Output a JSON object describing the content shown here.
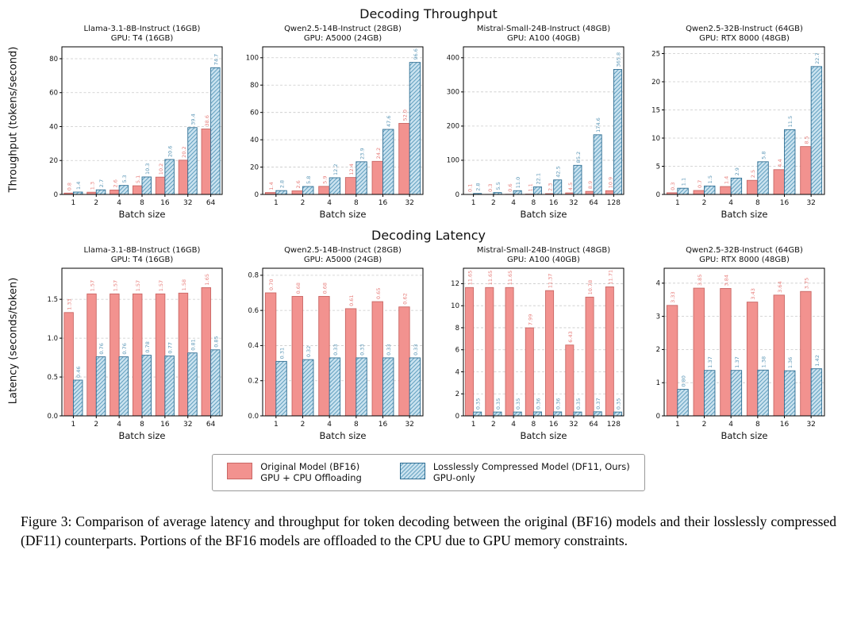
{
  "page": {
    "row1_title": "Decoding Throughput",
    "row2_title": "Decoding Latency",
    "row1_ylabel": "Throughput (tokens/second)",
    "row2_ylabel": "Latency (seconds/token)",
    "xlabel": "Batch size"
  },
  "legend": {
    "bf16_line1": "Original Model (BF16)",
    "bf16_line2": "GPU + CPU Offloading",
    "df11_line1": "Losslessly Compressed Model (DF11, Ours)",
    "df11_line2": "GPU-only"
  },
  "caption": "Figure 3: Comparison of average latency and throughput for token decoding between the original (BF16) models and their losslessly compressed (DF11) counterparts. Portions of the BF16 models are offloaded to the CPU due to GPU memory constraints.",
  "colors": {
    "bf16_fill": "#F2928F",
    "bf16_edge": "#C96765",
    "bf16_label": "#E8827F",
    "df11_fill": "#CBE3F0",
    "df11_hatch": "#66A3C2",
    "df11_edge": "#2F6E93",
    "df11_label": "#5F99B8"
  },
  "chart_data": [
    {
      "type": "bar",
      "name": "throughput-llama-3-1-8b-t4",
      "title1": "Llama-3.1-8B-Instruct (16GB)",
      "title2": "GPU: T4 (16GB)",
      "categories": [
        "1",
        "2",
        "4",
        "8",
        "16",
        "32",
        "64"
      ],
      "ylim": [
        0,
        87
      ],
      "ytick_vals": [
        0,
        20,
        40,
        60,
        80
      ],
      "ytick_labels": [
        "0",
        "20",
        "40",
        "60",
        "80"
      ],
      "series": [
        {
          "name": "Original Model (BF16) GPU + CPU Offloading",
          "values": [
            0.8,
            1.3,
            2.6,
            5.1,
            10.2,
            20.2,
            38.6
          ],
          "labels": [
            "0.8",
            "1.3",
            "2.6",
            "5.1",
            "10.2",
            "20.2",
            "38.6"
          ]
        },
        {
          "name": "Losslessly Compressed Model (DF11, Ours) GPU-only",
          "values": [
            1.4,
            2.7,
            5.3,
            10.3,
            20.6,
            39.4,
            74.7
          ],
          "labels": [
            "1.4",
            "2.7",
            "5.3",
            "10.3",
            "20.6",
            "39.4",
            "74.7"
          ]
        }
      ]
    },
    {
      "type": "bar",
      "name": "throughput-qwen2-5-14b-a5000",
      "title1": "Qwen2.5-14B-Instruct (28GB)",
      "title2": "GPU: A5000 (24GB)",
      "categories": [
        "1",
        "2",
        "4",
        "8",
        "16",
        "32"
      ],
      "ylim": [
        0,
        108
      ],
      "ytick_vals": [
        0,
        20,
        40,
        60,
        80,
        100
      ],
      "ytick_labels": [
        "0",
        "20",
        "40",
        "60",
        "80",
        "100"
      ],
      "series": [
        {
          "name": "Original Model (BF16) GPU + CPU Offloading",
          "values": [
            1.4,
            2.6,
            5.9,
            12.4,
            24.2,
            52.0
          ],
          "labels": [
            "1.4",
            "2.6",
            "5.9",
            "12.4",
            "24.2",
            "52.0"
          ]
        },
        {
          "name": "Losslessly Compressed Model (DF11, Ours) GPU-only",
          "values": [
            2.8,
            5.8,
            12.2,
            23.9,
            47.6,
            96.6
          ],
          "labels": [
            "2.8",
            "5.8",
            "12.2",
            "23.9",
            "47.6",
            "96.6"
          ]
        }
      ]
    },
    {
      "type": "bar",
      "name": "throughput-mistral-small-24b-a100",
      "title1": "Mistral-Small-24B-Instruct (48GB)",
      "title2": "GPU: A100 (40GB)",
      "categories": [
        "1",
        "2",
        "4",
        "8",
        "16",
        "32",
        "64",
        "128"
      ],
      "ylim": [
        0,
        432
      ],
      "ytick_vals": [
        0,
        100,
        200,
        300,
        400
      ],
      "ytick_labels": [
        "0",
        "100",
        "200",
        "300",
        "400"
      ],
      "series": [
        {
          "name": "Original Model (BF16) GPU + CPU Offloading",
          "values": [
            0.1,
            0.3,
            0.6,
            1.1,
            2.3,
            4.5,
            8.9,
            10.9
          ],
          "labels": [
            "0.1",
            "0.3",
            "0.6",
            "1.1",
            "2.3",
            "4.5",
            "8.9",
            "10.9"
          ]
        },
        {
          "name": "Losslessly Compressed Model (DF11, Ours) GPU-only",
          "values": [
            2.8,
            5.5,
            11.0,
            22.1,
            42.5,
            85.2,
            174.6,
            365.8
          ],
          "labels": [
            "2.8",
            "5.5",
            "11.0",
            "22.1",
            "42.5",
            "85.2",
            "174.6",
            "365.8"
          ]
        }
      ]
    },
    {
      "type": "bar",
      "name": "throughput-qwen2-5-32b-rtx8000",
      "title1": "Qwen2.5-32B-Instruct (64GB)",
      "title2": "GPU: RTX 8000 (48GB)",
      "categories": [
        "1",
        "2",
        "4",
        "8",
        "16",
        "32"
      ],
      "ylim": [
        0,
        26.2
      ],
      "ytick_vals": [
        0,
        5,
        10,
        15,
        20,
        25
      ],
      "ytick_labels": [
        "0",
        "5",
        "10",
        "15",
        "20",
        "25"
      ],
      "series": [
        {
          "name": "Original Model (BF16) GPU + CPU Offloading",
          "values": [
            0.3,
            0.7,
            1.4,
            2.5,
            4.4,
            8.5
          ],
          "labels": [
            "0.3",
            "0.7",
            "1.4",
            "2.5",
            "4.4",
            "8.5"
          ]
        },
        {
          "name": "Losslessly Compressed Model (DF11, Ours) GPU-only",
          "values": [
            1.1,
            1.5,
            2.9,
            5.8,
            11.5,
            22.7
          ],
          "labels": [
            "1.1",
            "1.5",
            "2.9",
            "5.8",
            "11.5",
            "22.7"
          ]
        }
      ]
    },
    {
      "type": "bar",
      "name": "latency-llama-3-1-8b-t4",
      "title1": "Llama-3.1-8B-Instruct (16GB)",
      "title2": "GPU: T4 (16GB)",
      "categories": [
        "1",
        "2",
        "4",
        "8",
        "16",
        "32",
        "64"
      ],
      "ylim": [
        0,
        1.9
      ],
      "ytick_vals": [
        0,
        0.5,
        1.0,
        1.5
      ],
      "ytick_labels": [
        "0.0",
        "0.5",
        "1.0",
        "1.5"
      ],
      "series": [
        {
          "name": "Original Model (BF16) GPU + CPU Offloading",
          "values": [
            1.33,
            1.57,
            1.57,
            1.57,
            1.57,
            1.58,
            1.65
          ],
          "labels": [
            "1.33",
            "1.57",
            "1.57",
            "1.57",
            "1.57",
            "1.58",
            "1.65"
          ]
        },
        {
          "name": "Losslessly Compressed Model (DF11, Ours) GPU-only",
          "values": [
            0.46,
            0.76,
            0.76,
            0.78,
            0.77,
            0.81,
            0.85
          ],
          "labels": [
            "0.46",
            "0.76",
            "0.76",
            "0.78",
            "0.77",
            "0.81",
            "0.85"
          ]
        }
      ]
    },
    {
      "type": "bar",
      "name": "latency-qwen2-5-14b-a5000",
      "title1": "Qwen2.5-14B-Instruct (28GB)",
      "title2": "GPU: A5000 (24GB)",
      "categories": [
        "1",
        "2",
        "4",
        "8",
        "16",
        "32"
      ],
      "ylim": [
        0,
        0.84
      ],
      "ytick_vals": [
        0,
        0.2,
        0.4,
        0.6,
        0.8
      ],
      "ytick_labels": [
        "0.0",
        "0.2",
        "0.4",
        "0.6",
        "0.8"
      ],
      "series": [
        {
          "name": "Original Model (BF16) GPU + CPU Offloading",
          "values": [
            0.7,
            0.68,
            0.68,
            0.61,
            0.65,
            0.62
          ],
          "labels": [
            "0.70",
            "0.68",
            "0.68",
            "0.61",
            "0.65",
            "0.62"
          ]
        },
        {
          "name": "Losslessly Compressed Model (DF11, Ours) GPU-only",
          "values": [
            0.31,
            0.32,
            0.33,
            0.33,
            0.33,
            0.33
          ],
          "labels": [
            "0.31",
            "0.32",
            "0.33",
            "0.33",
            "0.33",
            "0.33"
          ]
        }
      ]
    },
    {
      "type": "bar",
      "name": "latency-mistral-small-24b-a100",
      "title1": "Mistral-Small-24B-Instruct (48GB)",
      "title2": "GPU: A100 (40GB)",
      "categories": [
        "1",
        "2",
        "4",
        "8",
        "16",
        "32",
        "64",
        "128"
      ],
      "ylim": [
        0,
        13.4
      ],
      "ytick_vals": [
        0,
        2,
        4,
        6,
        8,
        10,
        12
      ],
      "ytick_labels": [
        "0",
        "2",
        "4",
        "6",
        "8",
        "10",
        "12"
      ],
      "series": [
        {
          "name": "Original Model (BF16) GPU + CPU Offloading",
          "values": [
            11.65,
            11.65,
            11.65,
            7.99,
            11.37,
            6.43,
            10.78,
            11.71
          ],
          "labels": [
            "11.65",
            "11.65",
            "11.65",
            "7.99",
            "11.37",
            "6.43",
            "10.78",
            "11.71"
          ]
        },
        {
          "name": "Losslessly Compressed Model (DF11, Ours) GPU-only",
          "values": [
            0.35,
            0.35,
            0.35,
            0.36,
            0.36,
            0.35,
            0.37,
            0.35
          ],
          "labels": [
            "0.35",
            "0.35",
            "0.35",
            "0.36",
            "0.36",
            "0.35",
            "0.37",
            "0.35"
          ]
        }
      ]
    },
    {
      "type": "bar",
      "name": "latency-qwen2-5-32b-rtx8000",
      "title1": "Qwen2.5-32B-Instruct (64GB)",
      "title2": "GPU: RTX 8000 (48GB)",
      "categories": [
        "1",
        "2",
        "4",
        "8",
        "16",
        "32"
      ],
      "ylim": [
        0,
        4.45
      ],
      "ytick_vals": [
        0,
        1,
        2,
        3,
        4
      ],
      "ytick_labels": [
        "0",
        "1",
        "2",
        "3",
        "4"
      ],
      "series": [
        {
          "name": "Original Model (BF16) GPU + CPU Offloading",
          "values": [
            3.33,
            3.85,
            3.84,
            3.43,
            3.64,
            3.75
          ],
          "labels": [
            "3.33",
            "3.85",
            "3.84",
            "3.43",
            "3.64",
            "3.75"
          ]
        },
        {
          "name": "Losslessly Compressed Model (DF11, Ours) GPU-only",
          "values": [
            0.8,
            1.37,
            1.37,
            1.38,
            1.36,
            1.42
          ],
          "labels": [
            "0.80",
            "1.37",
            "1.37",
            "1.38",
            "1.36",
            "1.42"
          ]
        }
      ]
    }
  ]
}
